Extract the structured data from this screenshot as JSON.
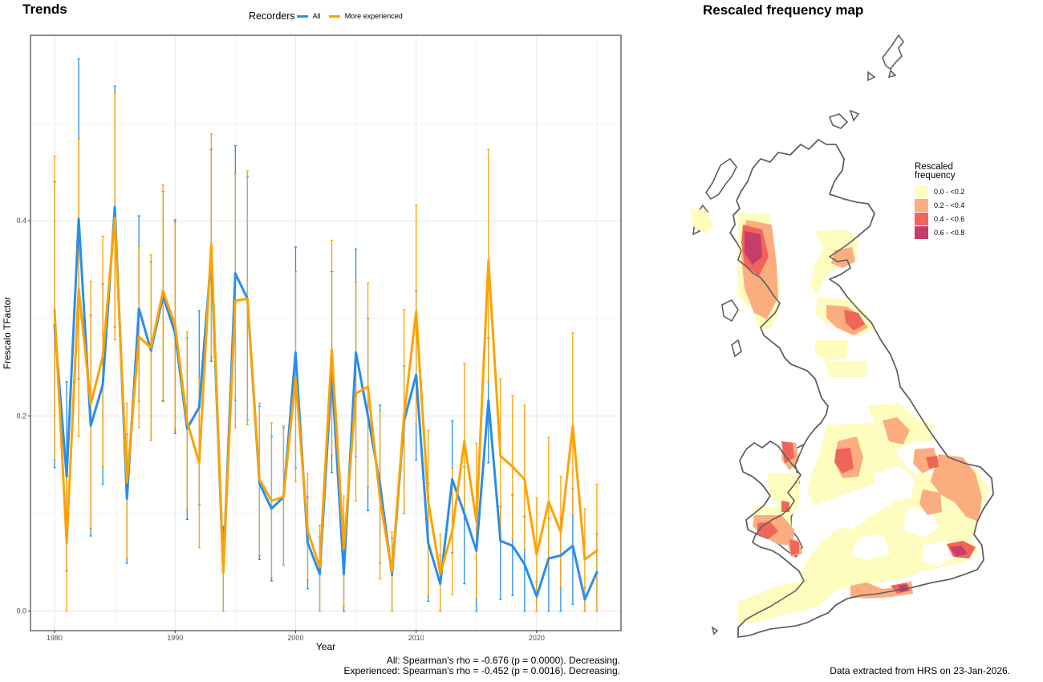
{
  "left_panel": {
    "title": "Trends"
  },
  "right_panel": {
    "title": "Rescaled frequency map"
  },
  "legend": {
    "title": "Recorders",
    "items": [
      {
        "label": "All",
        "color": "#2a8ee8"
      },
      {
        "label": "More experienced",
        "color": "#ffa200"
      }
    ]
  },
  "chart_data": {
    "type": "line",
    "xlabel": "Year",
    "ylabel": "Frescalo TFactor",
    "xlim": [
      1978,
      2027
    ],
    "ylim": [
      -0.02,
      0.59
    ],
    "x_ticks": [
      1980,
      1990,
      2000,
      2010,
      2020
    ],
    "y_ticks": [
      "0.0",
      "0.2",
      "0.4"
    ],
    "y_tick_values": [
      0.0,
      0.2,
      0.4
    ],
    "grid": true,
    "series": [
      {
        "name": "All",
        "color": "#2a8ee8",
        "x": [
          1980,
          1981,
          1982,
          1983,
          1984,
          1985,
          1986,
          1987,
          1988,
          1989,
          1990,
          1991,
          1992,
          1993,
          1994,
          1995,
          1996,
          1997,
          1998,
          1999,
          2000,
          2001,
          2002,
          2003,
          2004,
          2005,
          2006,
          2007,
          2008,
          2009,
          2010,
          2011,
          2012,
          2013,
          2014,
          2015,
          2016,
          2017,
          2018,
          2019,
          2020,
          2021,
          2022,
          2023,
          2024,
          2025
        ],
        "y": [
          0.293,
          0.138,
          0.402,
          0.19,
          0.232,
          0.414,
          0.115,
          0.31,
          0.267,
          0.323,
          0.285,
          0.187,
          0.209,
          0.364,
          0.04,
          0.346,
          0.32,
          0.131,
          0.105,
          0.117,
          0.265,
          0.07,
          0.038,
          0.245,
          0.038,
          0.265,
          0.2,
          0.13,
          0.037,
          0.195,
          0.242,
          0.07,
          0.028,
          0.135,
          0.1,
          0.062,
          0.216,
          0.072,
          0.067,
          0.048,
          0.015,
          0.054,
          0.057,
          0.067,
          0.012,
          0.04
        ],
        "lower": [
          0.147,
          0.041,
          0.238,
          0.077,
          0.13,
          0.291,
          0.049,
          0.215,
          0.175,
          0.215,
          0.182,
          0.094,
          0.109,
          0.256,
          0.0,
          0.216,
          0.196,
          0.053,
          0.031,
          0.047,
          0.147,
          0.023,
          0.0,
          0.142,
          0.0,
          0.158,
          0.103,
          0.049,
          0.0,
          0.1,
          0.155,
          0.01,
          0.0,
          0.06,
          0.028,
          0.0,
          0.152,
          0.012,
          0.016,
          0.0,
          0.0,
          0.0,
          0.0,
          0.007,
          0.0,
          0.0
        ],
        "upper": [
          0.44,
          0.235,
          0.566,
          0.303,
          0.335,
          0.538,
          0.181,
          0.405,
          0.358,
          0.43,
          0.401,
          0.28,
          0.308,
          0.473,
          0.087,
          0.477,
          0.445,
          0.21,
          0.179,
          0.188,
          0.373,
          0.117,
          0.076,
          0.348,
          0.08,
          0.371,
          0.3,
          0.211,
          0.075,
          0.251,
          0.328,
          0.131,
          0.057,
          0.195,
          0.148,
          0.107,
          0.28,
          0.107,
          0.119,
          0.097,
          0.03,
          0.095,
          0.096,
          0.126,
          0.024,
          0.079
        ]
      },
      {
        "name": "More experienced",
        "color": "#ffa200",
        "x": [
          1980,
          1981,
          1982,
          1983,
          1984,
          1985,
          1986,
          1987,
          1988,
          1989,
          1990,
          1991,
          1992,
          1993,
          1994,
          1995,
          1996,
          1997,
          1998,
          1999,
          2000,
          2001,
          2002,
          2003,
          2004,
          2005,
          2006,
          2007,
          2008,
          2009,
          2010,
          2011,
          2012,
          2013,
          2014,
          2015,
          2016,
          2017,
          2018,
          2019,
          2020,
          2021,
          2022,
          2023,
          2024,
          2025
        ],
        "y": [
          0.309,
          0.07,
          0.33,
          0.212,
          0.261,
          0.403,
          0.132,
          0.281,
          0.27,
          0.328,
          0.293,
          0.194,
          0.152,
          0.376,
          0.04,
          0.318,
          0.32,
          0.135,
          0.113,
          0.117,
          0.239,
          0.082,
          0.045,
          0.268,
          0.064,
          0.223,
          0.23,
          0.115,
          0.04,
          0.2,
          0.307,
          0.113,
          0.038,
          0.082,
          0.174,
          0.092,
          0.359,
          0.159,
          0.148,
          0.135,
          0.058,
          0.112,
          0.081,
          0.19,
          0.053,
          0.062
        ],
        "lower": [
          0.155,
          0.0,
          0.179,
          0.085,
          0.148,
          0.278,
          0.054,
          0.188,
          0.175,
          0.216,
          0.187,
          0.104,
          0.065,
          0.261,
          0.0,
          0.188,
          0.191,
          0.057,
          0.034,
          0.047,
          0.133,
          0.032,
          0.0,
          0.16,
          0.005,
          0.113,
          0.127,
          0.033,
          0.0,
          0.1,
          0.192,
          0.015,
          0.0,
          0.017,
          0.096,
          0.013,
          0.235,
          0.08,
          0.074,
          0.063,
          0.0,
          0.046,
          0.024,
          0.098,
          0.0,
          0.0
        ],
        "upper": [
          0.466,
          0.14,
          0.484,
          0.338,
          0.384,
          0.531,
          0.213,
          0.374,
          0.365,
          0.437,
          0.398,
          0.286,
          0.239,
          0.489,
          0.081,
          0.448,
          0.451,
          0.213,
          0.193,
          0.19,
          0.348,
          0.141,
          0.088,
          0.38,
          0.118,
          0.337,
          0.336,
          0.205,
          0.081,
          0.309,
          0.416,
          0.185,
          0.079,
          0.147,
          0.254,
          0.172,
          0.473,
          0.238,
          0.221,
          0.211,
          0.116,
          0.178,
          0.138,
          0.285,
          0.105,
          0.13
        ]
      }
    ]
  },
  "stats": {
    "line1": "All: Spearman's rho = -0.676 (p = 0.0000). Decreasing.",
    "line2": "Experienced: Spearman's rho = -0.452 (p = 0.0016). Decreasing."
  },
  "map_legend": {
    "title_line1": "Rescaled",
    "title_line2": "frequency",
    "items": [
      {
        "label": "0.0 - <0.2",
        "color": "#fefcbf"
      },
      {
        "label": "0.2 - <0.4",
        "color": "#fcad80"
      },
      {
        "label": "0.4 - <0.6",
        "color": "#f0655a"
      },
      {
        "label": "0.6 - <0.8",
        "color": "#c63c6b"
      }
    ]
  },
  "caption": "Data extracted from HRS on 23-Jan-2026."
}
